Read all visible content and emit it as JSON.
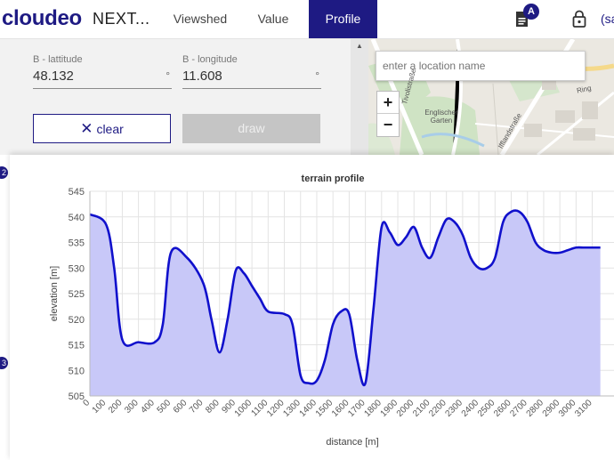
{
  "header": {
    "logo": "cloudeo",
    "project": "NEXT...",
    "tabs": [
      {
        "label": "Viewshed"
      },
      {
        "label": "Value"
      },
      {
        "label": "Profile",
        "active": true
      }
    ],
    "notification_badge": "A",
    "user_text": "(sa",
    "accent_color": "#1e1a83"
  },
  "form": {
    "lat_label": "B - lattitude",
    "lat_value": "48.132",
    "lat_unit": "°",
    "lon_label": "B - longitude",
    "lon_value": "11.608",
    "lon_unit": "°",
    "clear_label": "clear",
    "draw_label": "draw"
  },
  "map": {
    "search_placeholder": "enter a location name",
    "zoom_in": "+",
    "zoom_out": "−",
    "place_label": "Englischer Garten",
    "road_labels": [
      "Tivolistraße",
      "Ring",
      "Ifflandstraße"
    ]
  },
  "markers": [
    "2",
    "3"
  ],
  "chart_data": {
    "type": "area",
    "title": "terrain profile",
    "xlabel": "distance [m]",
    "ylabel": "elevation [m]",
    "xlim": [
      0,
      3150
    ],
    "ylim": [
      505,
      545
    ],
    "yticks": [
      505,
      510,
      515,
      520,
      525,
      530,
      535,
      540,
      545
    ],
    "xticks": [
      0,
      100,
      200,
      300,
      400,
      500,
      600,
      700,
      800,
      900,
      1000,
      1100,
      1200,
      1300,
      1400,
      1500,
      1600,
      1700,
      1800,
      1900,
      2000,
      2100,
      2200,
      2300,
      2400,
      2500,
      2600,
      2700,
      2800,
      2900,
      3000,
      3100
    ],
    "grid": true,
    "line_color": "#1010cc",
    "fill_color": "#c8c8f8",
    "x": [
      0,
      100,
      150,
      200,
      300,
      400,
      450,
      500,
      600,
      700,
      750,
      800,
      850,
      900,
      950,
      1000,
      1050,
      1100,
      1200,
      1250,
      1300,
      1350,
      1400,
      1450,
      1500,
      1550,
      1600,
      1650,
      1700,
      1750,
      1800,
      1850,
      1900,
      1950,
      2000,
      2050,
      2100,
      2150,
      2200,
      2250,
      2300,
      2350,
      2400,
      2450,
      2500,
      2550,
      2600,
      2650,
      2700,
      2750,
      2800,
      2850,
      2900,
      2950,
      3000,
      3050,
      3100,
      3150
    ],
    "y": [
      540.5,
      538.5,
      530,
      516,
      515.5,
      515.5,
      519,
      533,
      532,
      527,
      520,
      513.5,
      520,
      529.5,
      529,
      526.5,
      524,
      521.5,
      521,
      519,
      509,
      507.5,
      508,
      512,
      519,
      521.5,
      521,
      512,
      507.5,
      522,
      538,
      537,
      534.5,
      536,
      538,
      534,
      532,
      536,
      539.5,
      539,
      536.5,
      532,
      530,
      530,
      532,
      539,
      541,
      541,
      539,
      535,
      533.5,
      533,
      533,
      533.5,
      534,
      534,
      534,
      534
    ]
  }
}
